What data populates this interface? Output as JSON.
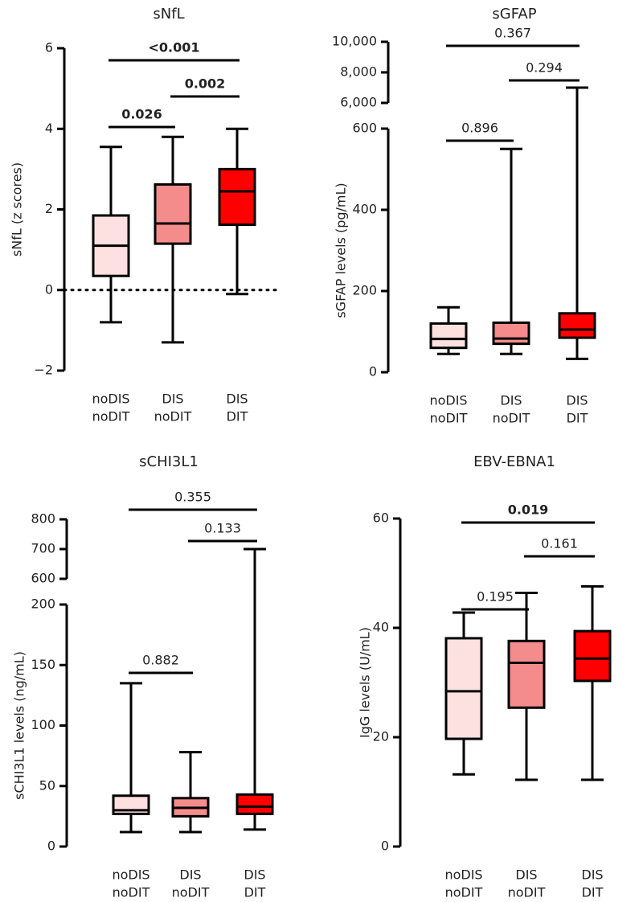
{
  "chart_data": [
    {
      "type": "box",
      "title": "sNfL",
      "ylabel": "sNfL (z scores)",
      "categories": [
        [
          "noDIS",
          "noDIT"
        ],
        [
          "DIS",
          "noDIT"
        ],
        [
          "DIS",
          "DIT"
        ]
      ],
      "colors": [
        "#fde0e0",
        "#f58c8c",
        "#ff0000"
      ],
      "ylim": [
        -2,
        6
      ],
      "yticks": [
        {
          "value": -2,
          "label": "−2"
        },
        0,
        2,
        4,
        6
      ],
      "reference_line": 0,
      "boxes": [
        {
          "min": -0.8,
          "q1": 0.35,
          "median": 1.1,
          "q3": 1.85,
          "max": 3.55
        },
        {
          "min": -1.3,
          "q1": 1.15,
          "median": 1.65,
          "q3": 2.62,
          "max": 3.8
        },
        {
          "min": -0.1,
          "q1": 1.62,
          "median": 2.45,
          "q3": 3.0,
          "max": 4.0
        }
      ],
      "comparisons": [
        {
          "between": [
            0,
            1
          ],
          "label": "0.026",
          "bold": true
        },
        {
          "between": [
            1,
            2
          ],
          "label": "0.002",
          "bold": true
        },
        {
          "between": [
            0,
            2
          ],
          "label": "<0.001",
          "bold": true
        }
      ]
    },
    {
      "type": "box",
      "title": "sGFAP",
      "ylabel": "sGFAP levels (pg/mL)",
      "categories": [
        [
          "noDIS",
          "noDIT"
        ],
        [
          "DIS",
          "noDIT"
        ],
        [
          "DIS",
          "DIT"
        ]
      ],
      "colors": [
        "#fde0e0",
        "#f58c8c",
        "#ff0000"
      ],
      "ylim": [
        0,
        600
      ],
      "yticks": [
        0,
        200,
        400,
        600
      ],
      "break": {
        "ylim": [
          6000,
          10000
        ],
        "yticks": [
          {
            "value": 6000,
            "label": "6,000"
          },
          {
            "value": 8000,
            "label": "8,000"
          },
          {
            "value": 10000,
            "label": "10,000"
          }
        ]
      },
      "boxes": [
        {
          "min": 45,
          "q1": 60,
          "median": 82,
          "q3": 120,
          "max": 160
        },
        {
          "min": 45,
          "q1": 70,
          "median": 83,
          "q3": 122,
          "max": 550
        },
        {
          "min": 33,
          "q1": 85,
          "median": 105,
          "q3": 145,
          "max": 7000
        }
      ],
      "comparisons": [
        {
          "between": [
            0,
            1
          ],
          "label": "0.896",
          "bold": false
        },
        {
          "between": [
            1,
            2
          ],
          "label": "0.294",
          "bold": false
        },
        {
          "between": [
            0,
            2
          ],
          "label": "0.367",
          "bold": false
        }
      ]
    },
    {
      "type": "box",
      "title": "sCHI3L1",
      "ylabel": "sCHI3L1 levels (ng/mL)",
      "categories": [
        [
          "noDIS",
          "noDIT"
        ],
        [
          "DIS",
          "noDIT"
        ],
        [
          "DIS",
          "DIT"
        ]
      ],
      "colors": [
        "#fde0e0",
        "#f58c8c",
        "#ff0000"
      ],
      "ylim": [
        0,
        200
      ],
      "yticks": [
        0,
        50,
        100,
        150,
        200
      ],
      "break": {
        "ylim": [
          600,
          800
        ],
        "yticks": [
          600,
          700,
          800
        ]
      },
      "boxes": [
        {
          "min": 12,
          "q1": 27,
          "median": 30,
          "q3": 42,
          "max": 135
        },
        {
          "min": 12,
          "q1": 25,
          "median": 32,
          "q3": 40,
          "max": 78
        },
        {
          "min": 14,
          "q1": 27,
          "median": 33,
          "q3": 43,
          "max": 700
        }
      ],
      "comparisons": [
        {
          "between": [
            0,
            1
          ],
          "label": "0.882",
          "bold": false
        },
        {
          "between": [
            1,
            2
          ],
          "label": "0.133",
          "bold": false
        },
        {
          "between": [
            0,
            2
          ],
          "label": "0.355",
          "bold": false
        }
      ]
    },
    {
      "type": "box",
      "title": "EBV-EBNA1",
      "ylabel": "IgG levels (U/mL)",
      "categories": [
        [
          "noDIS",
          "noDIT"
        ],
        [
          "DIS",
          "noDIT"
        ],
        [
          "DIS",
          "DIT"
        ]
      ],
      "colors": [
        "#fde0e0",
        "#f58c8c",
        "#ff0000"
      ],
      "ylim": [
        0,
        60
      ],
      "yticks": [
        0,
        20,
        40,
        60
      ],
      "boxes": [
        {
          "min": 13.2,
          "q1": 19.7,
          "median": 28.4,
          "q3": 38.1,
          "max": 42.8
        },
        {
          "min": 12.2,
          "q1": 25.4,
          "median": 33.6,
          "q3": 37.6,
          "max": 46.4
        },
        {
          "min": 12.2,
          "q1": 30.3,
          "median": 34.4,
          "q3": 39.4,
          "max": 47.6
        }
      ],
      "comparisons": [
        {
          "between": [
            0,
            1
          ],
          "label": "0.195",
          "bold": false
        },
        {
          "between": [
            1,
            2
          ],
          "label": "0.161",
          "bold": false
        },
        {
          "between": [
            0,
            2
          ],
          "label": "0.019",
          "bold": true
        }
      ]
    }
  ]
}
